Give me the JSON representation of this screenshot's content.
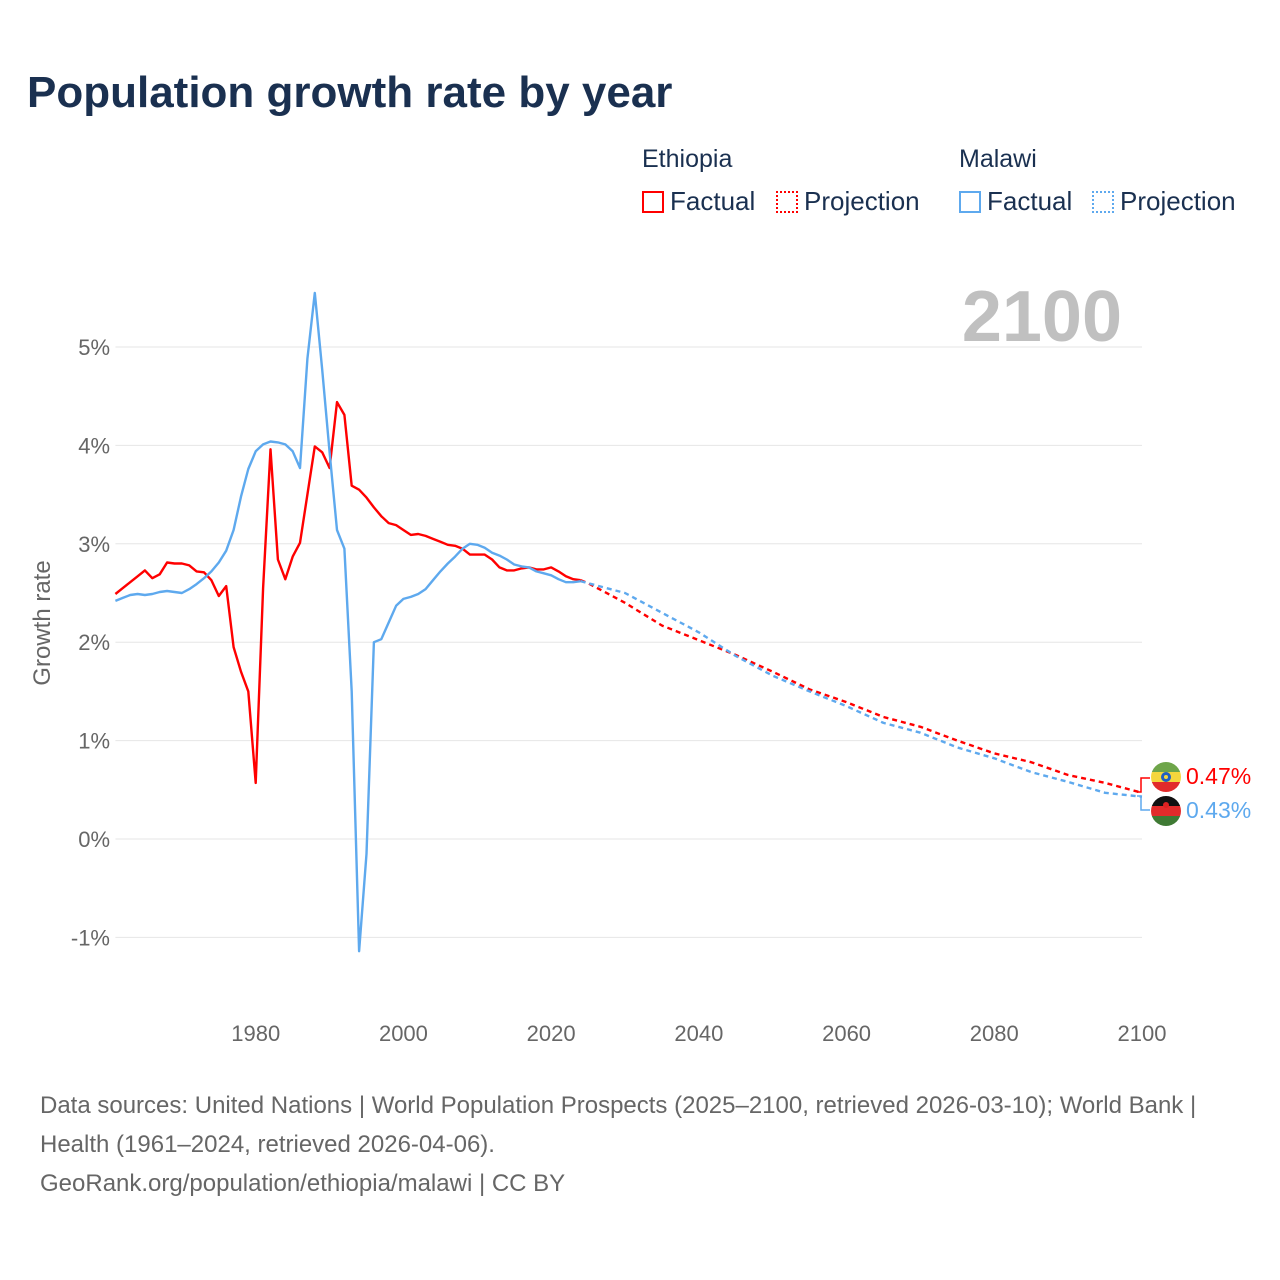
{
  "title": "Population growth rate by year",
  "legend": {
    "groups": [
      {
        "name": "Ethiopia",
        "color": "#ff0000",
        "factual": "Factual",
        "projection": "Projection"
      },
      {
        "name": "Malawi",
        "color": "#5ea9ee",
        "factual": "Factual",
        "projection": "Projection"
      }
    ]
  },
  "year_label": "2100",
  "end_labels": {
    "ethiopia": "0.47%",
    "malawi": "0.43%"
  },
  "footer": {
    "sources": "Data sources: United Nations | World Population Prospects (2025–2100, retrieved 2026-03-10); World Bank | Health (1961–2024, retrieved 2026-04-06).",
    "credit": "GeoRank.org/population/ethiopia/malawi | CC BY"
  },
  "chart_data": {
    "type": "line",
    "title": "Population growth rate by year",
    "xlabel": "",
    "ylabel": "Growth rate",
    "xlim": [
      1961,
      2100
    ],
    "ylim": [
      -1.5,
      5.9
    ],
    "xticks": [
      1980,
      2000,
      2020,
      2040,
      2060,
      2080,
      2100
    ],
    "xtick_labels": [
      "1980",
      "2000",
      "2020",
      "2040",
      "2060",
      "2080",
      "2100"
    ],
    "yticks": [
      -1,
      0,
      1,
      2,
      3,
      4,
      5
    ],
    "ytick_labels": [
      "-1%",
      "0%",
      "1%",
      "2%",
      "3%",
      "4%",
      "5%"
    ],
    "grid": true,
    "series": [
      {
        "name": "Ethiopia Factual",
        "color": "#ff0000",
        "dashed": false,
        "x_start": 1961,
        "values": [
          2.49,
          2.55,
          2.61,
          2.67,
          2.73,
          2.65,
          2.69,
          2.81,
          2.8,
          2.8,
          2.78,
          2.72,
          2.71,
          2.63,
          2.47,
          2.57,
          1.95,
          1.7,
          1.5,
          0.57,
          2.55,
          3.96,
          2.84,
          2.64,
          2.87,
          3.01,
          3.5,
          3.99,
          3.93,
          3.77,
          4.44,
          4.31,
          3.59,
          3.55,
          3.47,
          3.37,
          3.28,
          3.21,
          3.19,
          3.14,
          3.09,
          3.1,
          3.08,
          3.05,
          3.02,
          2.99,
          2.98,
          2.95,
          2.89,
          2.89,
          2.89,
          2.84,
          2.76,
          2.73,
          2.73,
          2.75,
          2.76,
          2.74,
          2.74,
          2.76,
          2.72,
          2.67,
          2.64,
          2.63
        ]
      },
      {
        "name": "Malawi Factual",
        "color": "#5ea9ee",
        "dashed": false,
        "x_start": 1961,
        "values": [
          2.42,
          2.45,
          2.48,
          2.49,
          2.48,
          2.49,
          2.51,
          2.52,
          2.51,
          2.5,
          2.54,
          2.59,
          2.65,
          2.72,
          2.81,
          2.93,
          3.14,
          3.48,
          3.76,
          3.94,
          4.01,
          4.04,
          4.03,
          4.01,
          3.94,
          3.77,
          4.88,
          5.55,
          4.77,
          3.93,
          3.14,
          2.95,
          1.5,
          -1.14,
          -0.15,
          2.0,
          2.03,
          2.2,
          2.37,
          2.44,
          2.46,
          2.49,
          2.54,
          2.63,
          2.72,
          2.8,
          2.87,
          2.95,
          3.0,
          2.99,
          2.96,
          2.91,
          2.88,
          2.84,
          2.79,
          2.77,
          2.76,
          2.72,
          2.7,
          2.68,
          2.64,
          2.61,
          2.61,
          2.62
        ]
      },
      {
        "name": "Ethiopia Projection",
        "color": "#ff0000",
        "dashed": true,
        "x": [
          2024,
          2025,
          2030,
          2035,
          2040,
          2045,
          2050,
          2055,
          2060,
          2065,
          2070,
          2075,
          2080,
          2085,
          2090,
          2095,
          2100
        ],
        "values": [
          2.63,
          2.6,
          2.4,
          2.17,
          2.02,
          1.87,
          1.7,
          1.52,
          1.39,
          1.24,
          1.14,
          1.0,
          0.87,
          0.78,
          0.65,
          0.57,
          0.47
        ]
      },
      {
        "name": "Malawi Projection",
        "color": "#5ea9ee",
        "dashed": true,
        "x": [
          2024,
          2025,
          2030,
          2035,
          2040,
          2045,
          2050,
          2055,
          2060,
          2065,
          2070,
          2075,
          2080,
          2085,
          2090,
          2095,
          2100
        ],
        "values": [
          2.62,
          2.6,
          2.5,
          2.3,
          2.1,
          1.86,
          1.66,
          1.5,
          1.35,
          1.18,
          1.08,
          0.93,
          0.82,
          0.68,
          0.58,
          0.47,
          0.43
        ]
      }
    ]
  }
}
